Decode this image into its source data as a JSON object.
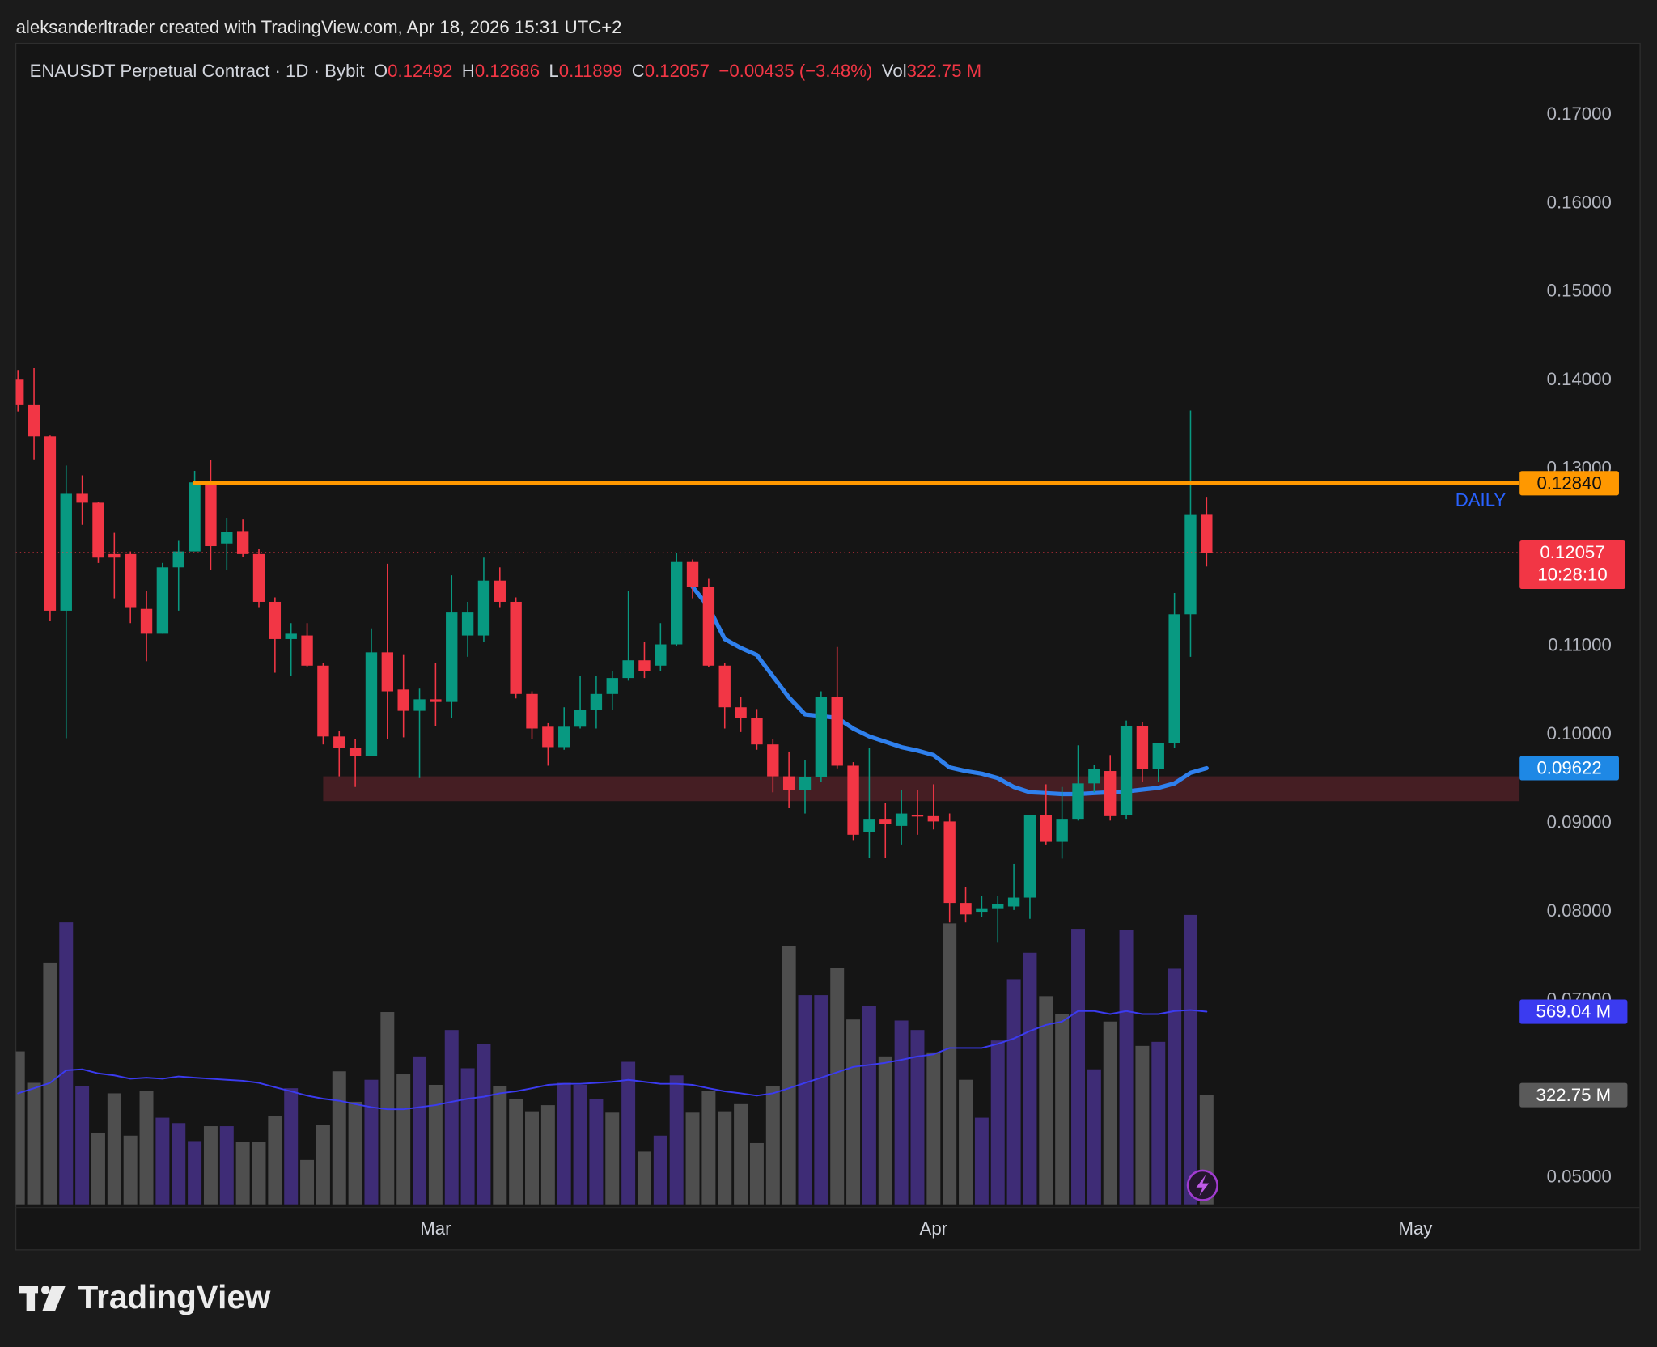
{
  "chart_data": {
    "type": "candlestick",
    "header": "aleksanderltrader created with TradingView.com, Apr 18, 2026 15:31 UTC+2",
    "symbol": "ENAUSDT Perpetual Contract · 1D · Bybit",
    "legend_labels": [
      "O",
      "H",
      "L",
      "C",
      "Vol"
    ],
    "change": "−0.00435 (−3.48%)",
    "watermark": "TradingView",
    "countdown": "10:28:10",
    "colors": {
      "up": "#089981",
      "down": "#f23645"
    },
    "categories": [
      null,
      null,
      null,
      null,
      null,
      null,
      null,
      null,
      null,
      null,
      null,
      null,
      null,
      null,
      null,
      null,
      null,
      null,
      null,
      null,
      null,
      null,
      null,
      null,
      null,
      null,
      "Mar",
      null,
      null,
      null,
      null,
      null,
      null,
      null,
      null,
      null,
      null,
      null,
      null,
      null,
      null,
      null,
      null,
      null,
      null,
      null,
      null,
      null,
      null,
      null,
      null,
      null,
      null,
      null,
      null,
      null,
      null,
      "Apr",
      null,
      null,
      null,
      null,
      null,
      null,
      null,
      null,
      null,
      null,
      null,
      null,
      null,
      null,
      null,
      null,
      null,
      null,
      null,
      null,
      null,
      null,
      null,
      null,
      null,
      null,
      null,
      null,
      null,
      "May"
    ],
    "open": [
      0.1401,
      0.1373,
      0.1337,
      0.114,
      0.1272,
      0.1262,
      0.1204,
      0.1204,
      0.1142,
      0.1114,
      0.1189,
      0.1207,
      0.1285,
      0.1216,
      0.123,
      0.1204,
      0.115,
      0.1108,
      0.1112,
      0.1078,
      0.0998,
      0.0985,
      0.0976,
      0.1093,
      0.1051,
      0.1027,
      0.104,
      0.1037,
      0.1112,
      0.1112,
      0.1174,
      0.115,
      0.1046,
      0.1009,
      0.0986,
      0.1009,
      0.1028,
      0.1046,
      0.1064,
      0.1084,
      0.1078,
      0.1102,
      0.1195,
      0.1167,
      0.1078,
      0.1031,
      0.1019,
      0.0989,
      0.0953,
      0.0938,
      0.0952,
      0.1043,
      0.0965,
      0.089,
      0.0905,
      0.0897,
      0.0909,
      0.0908,
      0.0902,
      0.081,
      0.08,
      0.0804,
      0.0806,
      0.0816,
      0.0909,
      0.0879,
      0.0905,
      0.0945,
      0.0959,
      0.0909,
      0.101,
      0.0961,
      0.0991,
      0.1136,
      0.12492,
      null,
      null,
      null,
      null,
      null,
      null,
      null,
      null,
      null,
      null,
      null,
      null,
      null
    ],
    "high": [
      0.1412,
      0.1414,
      0.1338,
      0.1304,
      0.1293,
      0.1263,
      0.1228,
      0.1207,
      0.1162,
      0.1194,
      0.1219,
      0.1298,
      0.131,
      0.1245,
      0.1243,
      0.121,
      0.1155,
      0.1126,
      0.1126,
      0.1081,
      0.1004,
      0.0995,
      0.112,
      0.1193,
      0.109,
      0.1052,
      0.1081,
      0.118,
      0.115,
      0.12,
      0.1189,
      0.1155,
      0.1049,
      0.1013,
      0.1031,
      0.1066,
      0.1066,
      0.1072,
      0.1162,
      0.1105,
      0.1126,
      0.1205,
      0.1198,
      0.1176,
      0.1081,
      0.1043,
      0.1029,
      0.0995,
      0.0981,
      0.0971,
      0.1049,
      0.1099,
      0.0969,
      0.0985,
      0.0923,
      0.0938,
      0.0938,
      0.0944,
      0.0911,
      0.0828,
      0.0818,
      0.0818,
      0.0854,
      0.0909,
      0.0944,
      0.0941,
      0.0988,
      0.0966,
      0.0977,
      0.1016,
      0.1014,
      0.0991,
      0.116,
      0.1366,
      0.12686,
      null,
      null,
      null,
      null,
      null,
      null,
      null,
      null,
      null,
      null,
      null,
      null,
      null
    ],
    "low": [
      0.1365,
      0.1311,
      0.1128,
      0.0996,
      0.1237,
      0.1194,
      0.1154,
      0.1126,
      0.1083,
      0.1114,
      0.114,
      0.1207,
      0.1186,
      0.1186,
      0.1201,
      0.1144,
      0.107,
      0.1066,
      0.1076,
      0.0989,
      0.0953,
      0.0941,
      0.0976,
      0.0995,
      0.0997,
      0.0951,
      0.101,
      0.1019,
      0.1088,
      0.1105,
      0.1144,
      0.1041,
      0.0995,
      0.0965,
      0.0983,
      0.1007,
      0.1007,
      0.1028,
      0.1061,
      0.1064,
      0.1072,
      0.11,
      0.1154,
      0.1076,
      0.1007,
      0.1003,
      0.0983,
      0.0935,
      0.0917,
      0.0911,
      0.0947,
      0.0962,
      0.0881,
      0.0861,
      0.0861,
      0.0876,
      0.0887,
      0.0893,
      0.0788,
      0.0788,
      0.0794,
      0.0765,
      0.0802,
      0.0792,
      0.0876,
      0.086,
      0.0903,
      0.0935,
      0.0903,
      0.0905,
      0.0947,
      0.0947,
      0.0985,
      0.1088,
      0.11899,
      null,
      null,
      null,
      null,
      null,
      null,
      null,
      null,
      null,
      null,
      null,
      null,
      null
    ],
    "close": [
      0.1373,
      0.1337,
      0.114,
      0.1272,
      0.1262,
      0.12,
      0.12,
      0.1144,
      0.1114,
      0.1189,
      0.1207,
      0.1285,
      0.1213,
      0.1229,
      0.1204,
      0.115,
      0.1108,
      0.1114,
      0.1078,
      0.0998,
      0.0985,
      0.0976,
      0.1093,
      0.1049,
      0.1027,
      0.104,
      0.1037,
      0.1138,
      0.1138,
      0.1174,
      0.115,
      0.1046,
      0.1007,
      0.0986,
      0.1009,
      0.1028,
      0.1046,
      0.1064,
      0.1084,
      0.1072,
      0.1102,
      0.1195,
      0.1167,
      0.1078,
      0.1031,
      0.1019,
      0.0989,
      0.0953,
      0.0938,
      0.0952,
      0.1043,
      0.0965,
      0.0887,
      0.0905,
      0.0899,
      0.0911,
      0.0908,
      0.0902,
      0.081,
      0.0797,
      0.0804,
      0.0809,
      0.0816,
      0.0909,
      0.0879,
      0.0905,
      0.0945,
      0.0961,
      0.0908,
      0.101,
      0.0961,
      0.0991,
      0.1136,
      0.1249,
      0.12057,
      null,
      null,
      null,
      null,
      null,
      null,
      null,
      null,
      null,
      null,
      null,
      null,
      null
    ],
    "ma": {
      "color": "#2f80ed",
      "values": [
        null,
        null,
        null,
        null,
        null,
        null,
        null,
        null,
        null,
        null,
        null,
        null,
        null,
        null,
        null,
        null,
        null,
        null,
        null,
        null,
        null,
        null,
        null,
        null,
        null,
        null,
        null,
        null,
        null,
        null,
        null,
        null,
        null,
        null,
        null,
        null,
        null,
        null,
        null,
        null,
        null,
        null,
        0.1167,
        0.1144,
        0.1108,
        0.1098,
        0.109,
        0.1066,
        0.1042,
        0.1023,
        0.1021,
        0.1019,
        0.1007,
        0.0998,
        0.0992,
        0.0986,
        0.0982,
        0.0977,
        0.0963,
        0.0959,
        0.0956,
        0.0951,
        0.0941,
        0.0935,
        0.0934,
        0.0933,
        0.0933,
        0.0934,
        0.0935,
        0.0936,
        0.0938,
        0.094,
        0.0945,
        0.0957,
        0.09622,
        null,
        null,
        null,
        null,
        null,
        null,
        null,
        null,
        null,
        null,
        null,
        null,
        null
      ]
    },
    "ylim": [
      0.0466,
      0.1782
    ],
    "yticks": [
      {
        "value": 0.17,
        "label": "0.17000"
      },
      {
        "value": 0.16,
        "label": "0.16000"
      },
      {
        "value": 0.15,
        "label": "0.15000"
      },
      {
        "value": 0.14,
        "label": "0.14000"
      },
      {
        "value": 0.13,
        "label": "0.13000"
      },
      {
        "value": 0.11,
        "label": "0.11000"
      },
      {
        "value": 0.1,
        "label": "0.10000"
      },
      {
        "value": 0.09,
        "label": "0.09000"
      },
      {
        "value": 0.08,
        "label": "0.08000"
      },
      {
        "value": 0.07,
        "label": "0.07000"
      },
      {
        "value": 0.05,
        "label": "0.05000"
      }
    ],
    "grid": false,
    "level": {
      "value": 0.1284,
      "label": "0.12840",
      "tag": "DAILY",
      "color": "#ff9800",
      "tag_color": "#2962ff"
    },
    "zone": {
      "low": 0.0925,
      "high": 0.0953,
      "color": "#4a1f25"
    },
    "volume": {
      "vlim": [
        0,
        880
      ],
      "values": [
        452,
        359,
        714,
        833,
        349,
        212,
        328,
        203,
        334,
        256,
        240,
        187,
        231,
        231,
        184,
        184,
        262,
        343,
        131,
        234,
        393,
        303,
        368,
        568,
        384,
        437,
        353,
        515,
        402,
        474,
        349,
        312,
        275,
        293,
        359,
        353,
        312,
        271,
        421,
        156,
        203,
        381,
        271,
        334,
        275,
        296,
        181,
        349,
        764,
        618,
        618,
        699,
        546,
        587,
        437,
        543,
        515,
        449,
        830,
        368,
        256,
        484,
        665,
        743,
        615,
        562,
        814,
        399,
        540,
        811,
        468,
        480,
        696,
        855,
        322.75,
        null,
        null,
        null,
        null,
        null,
        null,
        null,
        null,
        null,
        null,
        null,
        null,
        null
      ],
      "value_labels": [
        null,
        null,
        null,
        null,
        null,
        null,
        null,
        null,
        null,
        null,
        null,
        null,
        null,
        null,
        null,
        null,
        null,
        null,
        null,
        null,
        null,
        null,
        null,
        null,
        null,
        null,
        null,
        null,
        null,
        null,
        null,
        null,
        null,
        null,
        null,
        null,
        null,
        null,
        null,
        null,
        null,
        null,
        null,
        null,
        null,
        null,
        null,
        null,
        null,
        null,
        null,
        null,
        null,
        null,
        null,
        null,
        null,
        null,
        null,
        null,
        null,
        null,
        null,
        null,
        null,
        null,
        null,
        null,
        null,
        null,
        null,
        null,
        null,
        null,
        "322.75 M",
        null,
        null,
        null,
        null,
        null,
        null,
        null,
        null,
        null,
        null,
        null,
        null,
        null
      ],
      "colors": [
        "#4e4e4e",
        "#4e4e4e",
        "#4e4e4e",
        "#3e2c76",
        "#3e2c76",
        "#4e4e4e",
        "#4e4e4e",
        "#4e4e4e",
        "#4e4e4e",
        "#3e2c76",
        "#3e2c76",
        "#3e2c76",
        "#4e4e4e",
        "#3e2c76",
        "#4e4e4e",
        "#4e4e4e",
        "#4e4e4e",
        "#3e2c76",
        "#4e4e4e",
        "#4e4e4e",
        "#4e4e4e",
        "#4e4e4e",
        "#3e2c76",
        "#4e4e4e",
        "#4e4e4e",
        "#3e2c76",
        "#4e4e4e",
        "#3e2c76",
        "#3e2c76",
        "#3e2c76",
        "#4e4e4e",
        "#4e4e4e",
        "#4e4e4e",
        "#4e4e4e",
        "#3e2c76",
        "#3e2c76",
        "#3e2c76",
        "#4e4e4e",
        "#3e2c76",
        "#4e4e4e",
        "#3e2c76",
        "#3e2c76",
        "#4e4e4e",
        "#4e4e4e",
        "#4e4e4e",
        "#4e4e4e",
        "#4e4e4e",
        "#4e4e4e",
        "#4e4e4e",
        "#3e2c76",
        "#3e2c76",
        "#4e4e4e",
        "#4e4e4e",
        "#3e2c76",
        "#4e4e4e",
        "#3e2c76",
        "#3e2c76",
        "#4e4e4e",
        "#4e4e4e",
        "#4e4e4e",
        "#3e2c76",
        "#3e2c76",
        "#3e2c76",
        "#3e2c76",
        "#4e4e4e",
        "#4e4e4e",
        "#3e2c76",
        "#3e2c76",
        "#4e4e4e",
        "#3e2c76",
        "#4e4e4e",
        "#3e2c76",
        "#3e2c76",
        "#3e2c76",
        "#4e4e4e",
        null,
        null,
        null,
        null,
        null,
        null,
        null,
        null,
        null,
        null,
        null,
        null,
        null
      ],
      "badge_color": "#5a5a5a",
      "ma": {
        "color": "#3b3bf0",
        "values": [
          328,
          343,
          359,
          396,
          399,
          387,
          381,
          371,
          374,
          371,
          378,
          374,
          371,
          368,
          365,
          359,
          346,
          334,
          321,
          312,
          306,
          296,
          287,
          281,
          281,
          287,
          293,
          303,
          312,
          318,
          328,
          334,
          343,
          353,
          356,
          356,
          359,
          362,
          368,
          362,
          356,
          356,
          353,
          343,
          334,
          328,
          321,
          328,
          343,
          359,
          374,
          390,
          406,
          412,
          418,
          427,
          437,
          443,
          462,
          462,
          462,
          474,
          490,
          512,
          530,
          540,
          571,
          571,
          562,
          571,
          562,
          562,
          571,
          574,
          569.04,
          null,
          null,
          null,
          null,
          null,
          null,
          null,
          null,
          null,
          null,
          null,
          null,
          null
        ],
        "value_labels": [
          null,
          null,
          null,
          null,
          null,
          null,
          null,
          null,
          null,
          null,
          null,
          null,
          null,
          null,
          null,
          null,
          null,
          null,
          null,
          null,
          null,
          null,
          null,
          null,
          null,
          null,
          null,
          null,
          null,
          null,
          null,
          null,
          null,
          null,
          null,
          null,
          null,
          null,
          null,
          null,
          null,
          null,
          null,
          null,
          null,
          null,
          null,
          null,
          null,
          null,
          null,
          null,
          null,
          null,
          null,
          null,
          null,
          null,
          null,
          null,
          null,
          null,
          null,
          null,
          null,
          null,
          null,
          null,
          null,
          null,
          null,
          null,
          null,
          null,
          "569.04 M",
          null,
          null,
          null,
          null,
          null,
          null,
          null,
          null,
          null,
          null,
          null,
          null,
          null
        ]
      }
    }
  }
}
